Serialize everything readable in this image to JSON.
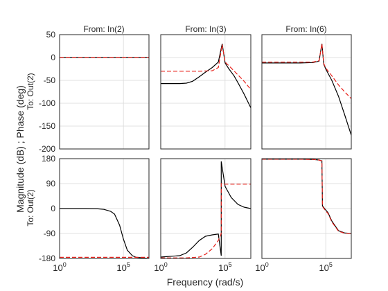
{
  "chart_data": {
    "type": "line",
    "xlabel": "Frequency  (rad/s)",
    "ylabel": "Magnitude (dB) ; Phase (deg)",
    "column_titles": [
      "From: In(2)",
      "From: In(3)",
      "From: In(6)"
    ],
    "row_titles": [
      "To: Out(2)",
      "To: Out(2)"
    ],
    "x_scale": "log",
    "xlim": [
      1,
      10000000
    ],
    "x_ticks": [
      1,
      100000
    ],
    "x_tick_labels": [
      {
        "base": "10",
        "exp": "0"
      },
      {
        "base": "10",
        "exp": "5"
      }
    ],
    "magnitude": {
      "ylim": [
        -200,
        50
      ],
      "y_ticks": [
        50,
        0,
        -50,
        -100,
        -150,
        -200
      ],
      "y_tick_labels": [
        "50",
        "0",
        "-50",
        "-100",
        "-150",
        "-200"
      ]
    },
    "phase": {
      "ylim": [
        -180,
        180
      ],
      "y_ticks": [
        180,
        90,
        0,
        -90,
        -180
      ],
      "y_tick_labels": [
        "180",
        "90",
        "0",
        "-90",
        "-180"
      ]
    },
    "grid": true,
    "series_colors": {
      "solid": "#000000",
      "dashed": "#e8201a"
    },
    "panels": [
      {
        "row": "magnitude",
        "col": 0,
        "series": [
          {
            "style": "solid",
            "x": [
              1,
              10000000
            ],
            "y": [
              0,
              0
            ]
          },
          {
            "style": "dashed",
            "x": [
              1,
              10000000
            ],
            "y": [
              0,
              0
            ]
          }
        ]
      },
      {
        "row": "magnitude",
        "col": 1,
        "series": [
          {
            "style": "solid",
            "x": [
              1,
              30,
              100,
              300,
              1000,
              3000,
              10000,
              30000,
              60000,
              100000,
              200000,
              500000,
              1000000,
              3000000,
              10000000
            ],
            "y": [
              -57,
              -57,
              -56,
              -52,
              -42,
              -32,
              -22,
              -10,
              30,
              -12,
              -25,
              -40,
              -55,
              -80,
              -110
            ]
          },
          {
            "style": "dashed",
            "x": [
              1,
              1000,
              10000,
              30000,
              60000,
              100000,
              300000,
              1000000,
              3000000,
              10000000
            ],
            "y": [
              -30,
              -30,
              -29,
              -22,
              28,
              -10,
              -23,
              -38,
              -52,
              -70
            ]
          }
        ]
      },
      {
        "row": "magnitude",
        "col": 2,
        "series": [
          {
            "style": "solid",
            "x": [
              1,
              1000,
              10000,
              30000,
              50000,
              70000,
              100000,
              300000,
              1000000,
              3000000,
              10000000
            ],
            "y": [
              -12,
              -12,
              -11,
              -8,
              30,
              -15,
              -25,
              -50,
              -85,
              -125,
              -170
            ]
          },
          {
            "style": "dashed",
            "x": [
              1,
              1000,
              10000,
              30000,
              50000,
              70000,
              100000,
              300000,
              1000000,
              3000000,
              10000000
            ],
            "y": [
              -10,
              -10,
              -10,
              -7,
              30,
              -13,
              -23,
              -40,
              -60,
              -75,
              -90
            ]
          }
        ]
      },
      {
        "row": "phase",
        "col": 0,
        "series": [
          {
            "style": "solid",
            "x": [
              1,
              100,
              1000,
              3000,
              10000,
              20000,
              50000,
              100000,
              200000,
              500000,
              1000000,
              10000000
            ],
            "y": [
              0,
              0,
              -1,
              -3,
              -10,
              -20,
              -60,
              -110,
              -150,
              -170,
              -176,
              -180
            ]
          },
          {
            "style": "dashed",
            "x": [
              1,
              10000000
            ],
            "y": [
              -176,
              -176
            ]
          }
        ]
      },
      {
        "row": "phase",
        "col": 1,
        "series": [
          {
            "style": "solid",
            "x": [
              1,
              30,
              100,
              300,
              1000,
              3000,
              10000,
              30000,
              50000,
              50001,
              100000,
              300000,
              1000000,
              3000000,
              10000000
            ],
            "y": [
              -175,
              -170,
              -160,
              -140,
              -115,
              -100,
              -95,
              -92,
              -170,
              170,
              80,
              40,
              15,
              5,
              0
            ]
          },
          {
            "style": "dashed",
            "x": [
              1,
              100,
              1000,
              3000,
              10000,
              30000,
              50000,
              50001,
              100000,
              300000,
              1000000,
              10000000
            ],
            "y": [
              -178,
              -178,
              -175,
              -165,
              -145,
              -115,
              -90,
              90,
              88,
              88,
              88,
              88
            ]
          }
        ]
      },
      {
        "row": "phase",
        "col": 2,
        "series": [
          {
            "style": "solid",
            "x": [
              1,
              1000,
              10000,
              30000,
              50000,
              55000,
              80000,
              150000,
              300000,
              1000000,
              3000000,
              10000000
            ],
            "y": [
              178,
              178,
              177,
              175,
              172,
              10,
              0,
              -15,
              -45,
              -80,
              -88,
              -90
            ]
          },
          {
            "style": "dashed",
            "x": [
              1,
              1000,
              10000,
              30000,
              50000,
              55000,
              80000,
              150000,
              300000,
              1000000,
              3000000,
              10000000
            ],
            "y": [
              178,
              178,
              177,
              175,
              172,
              8,
              -3,
              -18,
              -48,
              -82,
              -89,
              -90
            ]
          }
        ]
      }
    ]
  }
}
